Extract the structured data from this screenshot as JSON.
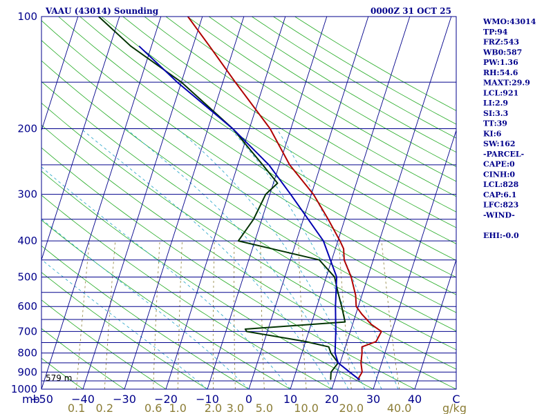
{
  "chart_data": {
    "type": "skew-t-log-p",
    "title_left": "VAAU (43014) Sounding",
    "title_right": "0000Z 31 OCT 25",
    "pressure_unit": "mb",
    "temperature_unit": "C",
    "mixing_ratio_unit": "g/kg",
    "pressure_range": [
      1000,
      100
    ],
    "pressure_ticks": [
      "100",
      "200",
      "300",
      "400",
      "500",
      "600",
      "700",
      "800",
      "900",
      "1000"
    ],
    "pressure_levels": [
      100,
      150,
      200,
      250,
      300,
      350,
      400,
      450,
      500,
      550,
      600,
      650,
      700,
      750,
      800,
      850,
      900,
      950,
      1000
    ],
    "temp_ticks": [
      "−50",
      "−40",
      "−30",
      "−20",
      "−10",
      "0",
      "10",
      "20",
      "30",
      "40",
      "C"
    ],
    "temp_tick_values": [
      -50,
      -40,
      -30,
      -20,
      -10,
      0,
      10,
      20,
      30,
      40,
      50
    ],
    "mixing_ratio_ticks": [
      "0.1",
      "0.2",
      "0.6",
      "1.0",
      "2.0",
      "3.0",
      "5.0",
      "10.0",
      "20.0",
      "40.0"
    ],
    "mixing_ratio_values": [
      0.1,
      0.2,
      0.6,
      1.0,
      2.0,
      3.0,
      5.0,
      10.0,
      20.0,
      40.0
    ],
    "surface_height_label": "579 m",
    "series": [
      {
        "name": "Temperature",
        "color": "#b00000",
        "points": [
          [
            944,
            25.5
          ],
          [
            900,
            26.0
          ],
          [
            850,
            25.0
          ],
          [
            800,
            24.5
          ],
          [
            770,
            24.0
          ],
          [
            745,
            27.0
          ],
          [
            700,
            27.5
          ],
          [
            670,
            24.5
          ],
          [
            630,
            21.5
          ],
          [
            600,
            19.5
          ],
          [
            560,
            18.5
          ],
          [
            500,
            16.0
          ],
          [
            450,
            13.0
          ],
          [
            420,
            12.0
          ],
          [
            400,
            10.5
          ],
          [
            350,
            6.0
          ],
          [
            300,
            0.5
          ],
          [
            250,
            -7.5
          ],
          [
            200,
            -15.0
          ],
          [
            150,
            -27.0
          ],
          [
            120,
            -36.0
          ],
          [
            100,
            -43.5
          ]
        ]
      },
      {
        "name": "Dew point",
        "color": "#003300",
        "points": [
          [
            944,
            19.0
          ],
          [
            900,
            18.5
          ],
          [
            850,
            19.5
          ],
          [
            800,
            17.0
          ],
          [
            770,
            16.0
          ],
          [
            745,
            10.0
          ],
          [
            700,
            -5.0
          ],
          [
            690,
            -5.5
          ],
          [
            660,
            18.0
          ],
          [
            600,
            16.0
          ],
          [
            550,
            14.0
          ],
          [
            500,
            12.0
          ],
          [
            450,
            7.0
          ],
          [
            400,
            -14.0
          ],
          [
            350,
            -12.0
          ],
          [
            300,
            -11.0
          ],
          [
            280,
            -9.0
          ],
          [
            250,
            -14.0
          ],
          [
            200,
            -24.0
          ],
          [
            150,
            -40.0
          ],
          [
            120,
            -55.0
          ],
          [
            100,
            -65.0
          ]
        ]
      },
      {
        "name": "Parcel",
        "color": "#0000b0",
        "points": [
          [
            944,
            26.0
          ],
          [
            900,
            23.0
          ],
          [
            850,
            19.5
          ],
          [
            800,
            18.0
          ],
          [
            700,
            16.5
          ],
          [
            600,
            14.5
          ],
          [
            500,
            12.5
          ],
          [
            400,
            6.5
          ],
          [
            300,
            -5.0
          ],
          [
            250,
            -12.5
          ],
          [
            200,
            -24.0
          ],
          [
            150,
            -41.0
          ],
          [
            120,
            -53.0
          ]
        ]
      }
    ]
  },
  "indices": [
    "WMO:43014",
    "TP:94",
    "FRZ:543",
    "WB0:587",
    "PW:1.36",
    "RH:54.6",
    "MAXT:29.9",
    "LCL:921",
    "LI:2.9",
    "SI:3.3",
    "TT:39",
    "KI:6",
    "SW:162",
    "-PARCEL-",
    "CAPE:0",
    "CINH:0",
    "LCL:828",
    "CAP:6.1",
    "LFC:823",
    "-WIND-",
    "",
    "EHI:-0.0"
  ]
}
